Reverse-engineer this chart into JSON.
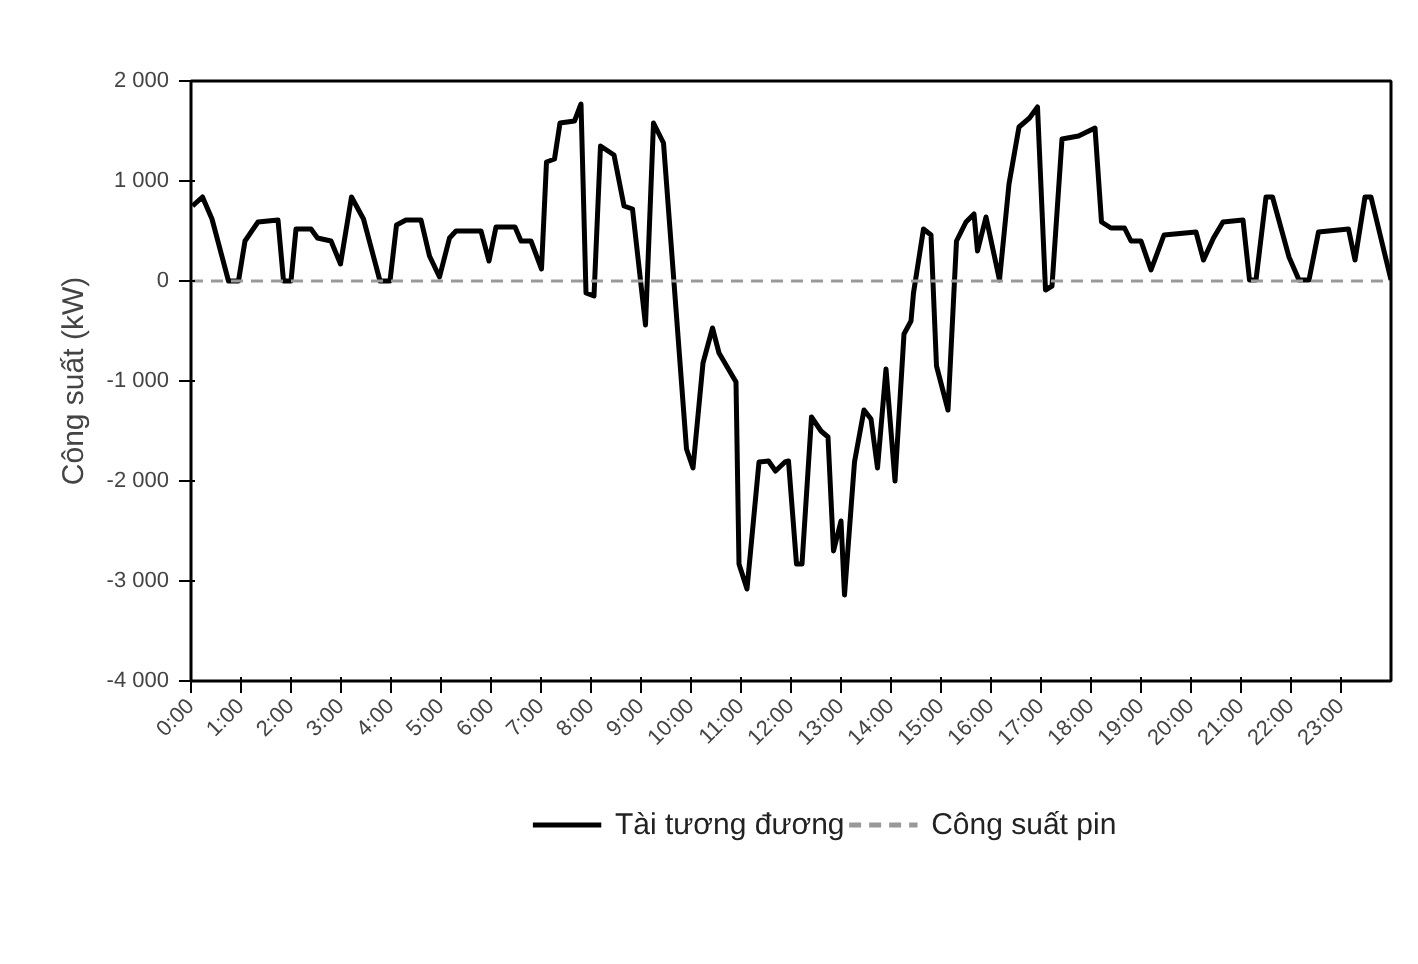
{
  "chart_data": {
    "type": "line",
    "ylabel": "Công suất (kW)",
    "xlim": [
      0,
      24
    ],
    "ylim": [
      -4000,
      2000
    ],
    "xticks": [
      {
        "value": 0,
        "label": "0:00"
      },
      {
        "value": 1,
        "label": "1:00"
      },
      {
        "value": 2,
        "label": "2:00"
      },
      {
        "value": 3,
        "label": "3:00"
      },
      {
        "value": 4,
        "label": "4:00"
      },
      {
        "value": 5,
        "label": "5:00"
      },
      {
        "value": 6,
        "label": "6:00"
      },
      {
        "value": 7,
        "label": "7:00"
      },
      {
        "value": 8,
        "label": "8:00"
      },
      {
        "value": 9,
        "label": "9:00"
      },
      {
        "value": 10,
        "label": "10:00"
      },
      {
        "value": 11,
        "label": "11:00"
      },
      {
        "value": 12,
        "label": "12:00"
      },
      {
        "value": 13,
        "label": "13:00"
      },
      {
        "value": 14,
        "label": "14:00"
      },
      {
        "value": 15,
        "label": "15:00"
      },
      {
        "value": 16,
        "label": "16:00"
      },
      {
        "value": 17,
        "label": "17:00"
      },
      {
        "value": 18,
        "label": "18:00"
      },
      {
        "value": 19,
        "label": "19:00"
      },
      {
        "value": 20,
        "label": "20:00"
      },
      {
        "value": 21,
        "label": "21:00"
      },
      {
        "value": 22,
        "label": "22:00"
      },
      {
        "value": 23,
        "label": "23:00"
      }
    ],
    "yticks": [
      {
        "value": 2000,
        "label": "2 000"
      },
      {
        "value": 1000,
        "label": "1 000"
      },
      0,
      {
        "value": -1000,
        "label": "-1 000"
      },
      {
        "value": -2000,
        "label": "-2 000"
      },
      {
        "value": -3000,
        "label": "-3 000"
      },
      {
        "value": -4000,
        "label": "-4 000"
      }
    ],
    "grid": false,
    "legend": "bottom",
    "marker": "none",
    "series": [
      {
        "name": "Tài tương đương",
        "color": "#000000",
        "line_style": "solid",
        "x": [
          0.03,
          0.23,
          0.42,
          0.75,
          0.95,
          1.08,
          1.34,
          1.74,
          1.85,
          2.0,
          2.1,
          2.4,
          2.53,
          2.8,
          2.99,
          3.21,
          3.45,
          3.78,
          3.98,
          4.11,
          4.3,
          4.6,
          4.77,
          4.97,
          5.17,
          5.3,
          5.8,
          5.96,
          6.1,
          6.48,
          6.6,
          6.8,
          7.01,
          7.11,
          7.27,
          7.38,
          7.67,
          7.8,
          7.9,
          8.06,
          8.19,
          8.46,
          8.66,
          8.83,
          9.09,
          9.25,
          9.45,
          9.91,
          10.04,
          10.24,
          10.43,
          10.56,
          10.9,
          10.96,
          11.12,
          11.36,
          11.55,
          11.69,
          11.88,
          11.95,
          12.11,
          12.22,
          12.41,
          12.6,
          12.74,
          12.85,
          13.0,
          13.07,
          13.27,
          13.46,
          13.6,
          13.73,
          13.9,
          14.08,
          14.26,
          14.4,
          14.45,
          14.65,
          14.8,
          14.91,
          15.14,
          15.31,
          15.5,
          15.66,
          15.73,
          15.9,
          16.17,
          16.36,
          16.56,
          16.77,
          16.93,
          17.09,
          17.22,
          17.42,
          17.75,
          18.08,
          18.21,
          18.4,
          18.67,
          18.8,
          19.0,
          19.2,
          19.46,
          20.1,
          20.25,
          20.45,
          20.64,
          21.04,
          21.17,
          21.3,
          21.5,
          21.63,
          21.96,
          22.16,
          22.36,
          22.55,
          23.15,
          23.28,
          23.48,
          23.6,
          24.0
        ],
        "values": [
          750,
          840,
          620,
          0,
          0,
          400,
          590,
          610,
          0,
          0,
          520,
          520,
          430,
          400,
          170,
          840,
          620,
          0,
          0,
          560,
          610,
          610,
          250,
          40,
          430,
          500,
          500,
          200,
          540,
          540,
          400,
          400,
          120,
          1190,
          1220,
          1580,
          1600,
          1770,
          -120,
          -150,
          1350,
          1260,
          750,
          720,
          -440,
          1580,
          1380,
          -1680,
          -1870,
          -820,
          -470,
          -720,
          -1010,
          -2830,
          -3080,
          -1810,
          -1800,
          -1900,
          -1810,
          -1800,
          -2830,
          -2830,
          -1360,
          -1500,
          -1560,
          -2700,
          -2400,
          -3140,
          -1810,
          -1290,
          -1380,
          -1870,
          -880,
          -2000,
          -530,
          -400,
          -120,
          520,
          460,
          -850,
          -1290,
          400,
          590,
          670,
          300,
          640,
          10,
          970,
          1540,
          1630,
          1740,
          -90,
          -50,
          1420,
          1450,
          1530,
          590,
          530,
          530,
          400,
          400,
          110,
          460,
          490,
          210,
          430,
          590,
          610,
          10,
          10,
          840,
          840,
          240,
          10,
          10,
          490,
          520,
          210,
          840,
          840,
          10
        ]
      },
      {
        "name": "Công suất pin",
        "color": "#999999",
        "line_style": "dashed",
        "x": [
          0,
          24
        ],
        "values": [
          0,
          0
        ]
      }
    ]
  }
}
